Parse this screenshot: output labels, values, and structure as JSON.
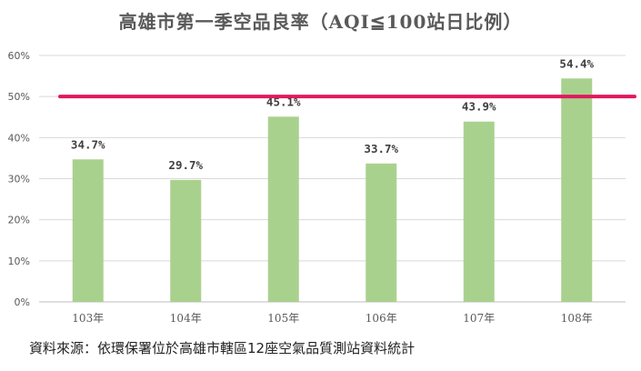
{
  "chart_data": {
    "type": "bar",
    "title": "高雄市第一季空品良率（AQI≦100站日比例）",
    "categories": [
      "103年",
      "104年",
      "105年",
      "106年",
      "107年",
      "108年"
    ],
    "values": [
      34.7,
      29.7,
      45.1,
      33.7,
      43.9,
      54.4
    ],
    "data_labels": [
      "34.7%",
      "29.7%",
      "45.1%",
      "33.7%",
      "43.9%",
      "54.4%"
    ],
    "ylim": [
      0,
      60
    ],
    "yticks": [
      0,
      10,
      20,
      30,
      40,
      50,
      60
    ],
    "ytick_labels": [
      "0%",
      "10%",
      "20%",
      "30%",
      "40%",
      "50%",
      "60%"
    ],
    "xlabel": "",
    "ylabel": "",
    "grid": true,
    "reference_line": 50,
    "colors": {
      "bar": "#a9d18e",
      "reference_line": "#e0195f",
      "grid": "#d9d9d9"
    }
  },
  "source_note": "資料來源：依環保署位於高雄市轄區12座空氣品質測站資料統計"
}
